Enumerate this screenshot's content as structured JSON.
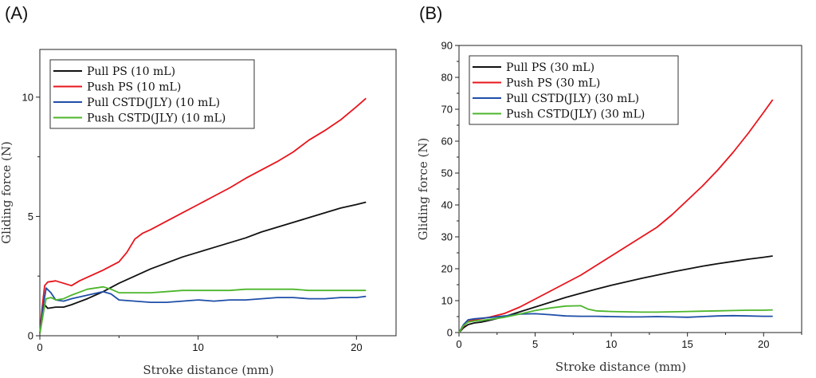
{
  "panels": [
    "(A)",
    "(B)"
  ],
  "chart_data": [
    {
      "type": "line",
      "panel": "(A)",
      "title": "",
      "xlabel": "Stroke distance (mm)",
      "ylabel": "Gliding force (N)",
      "xlim": [
        0,
        22.5
      ],
      "ylim": [
        0,
        12
      ],
      "xticks": [
        0,
        10,
        20
      ],
      "yticks": [
        0,
        5,
        10
      ],
      "legend_position": "top-left",
      "series": [
        {
          "name": "Pull PS (10 mL)",
          "color": "#111111",
          "x": [
            0,
            0.15,
            0.3,
            0.5,
            1,
            1.5,
            2,
            3,
            4,
            5,
            6,
            7,
            8,
            9,
            10,
            11,
            12,
            13,
            14,
            15,
            16,
            17,
            18,
            19,
            20,
            20.6
          ],
          "y": [
            0.1,
            0.7,
            1.3,
            1.15,
            1.2,
            1.2,
            1.3,
            1.55,
            1.85,
            2.2,
            2.5,
            2.8,
            3.05,
            3.3,
            3.5,
            3.7,
            3.9,
            4.1,
            4.35,
            4.55,
            4.75,
            4.95,
            5.15,
            5.35,
            5.5,
            5.6
          ]
        },
        {
          "name": "Push PS (10 mL)",
          "color": "#e8141b",
          "x": [
            0,
            0.15,
            0.3,
            0.5,
            1,
            1.5,
            2,
            2.5,
            3,
            4,
            5,
            5.5,
            6,
            6.5,
            7,
            8,
            9,
            10,
            11,
            12,
            13,
            14,
            15,
            16,
            17,
            18,
            19,
            20,
            20.6
          ],
          "y": [
            0.1,
            1.2,
            2.1,
            2.25,
            2.3,
            2.2,
            2.1,
            2.3,
            2.45,
            2.75,
            3.1,
            3.5,
            4.05,
            4.3,
            4.45,
            4.8,
            5.15,
            5.5,
            5.85,
            6.2,
            6.6,
            6.95,
            7.3,
            7.7,
            8.2,
            8.6,
            9.05,
            9.6,
            9.95
          ]
        },
        {
          "name": "Pull CSTD(JLY) (10 mL)",
          "color": "#1f4fa8",
          "x": [
            0,
            0.2,
            0.4,
            0.7,
            1,
            1.5,
            2,
            3,
            4,
            4.5,
            5,
            6,
            7,
            8,
            9,
            10,
            11,
            12,
            13,
            14,
            15,
            16,
            17,
            18,
            19,
            20,
            20.6
          ],
          "y": [
            0.1,
            1.2,
            2.0,
            1.8,
            1.5,
            1.45,
            1.55,
            1.7,
            1.85,
            1.75,
            1.5,
            1.45,
            1.4,
            1.4,
            1.45,
            1.5,
            1.45,
            1.5,
            1.5,
            1.55,
            1.6,
            1.6,
            1.55,
            1.55,
            1.6,
            1.6,
            1.65
          ]
        },
        {
          "name": "Push CSTD(JLY) (10 mL)",
          "color": "#4cb62c",
          "x": [
            0,
            0.2,
            0.4,
            0.7,
            1,
            1.5,
            2,
            3,
            3.5,
            4,
            4.5,
            5,
            6,
            7,
            8,
            9,
            10,
            11,
            12,
            13,
            14,
            15,
            16,
            17,
            18,
            19,
            20,
            20.6
          ],
          "y": [
            0.1,
            0.9,
            1.55,
            1.6,
            1.5,
            1.55,
            1.7,
            1.95,
            2.0,
            2.05,
            1.95,
            1.8,
            1.8,
            1.8,
            1.85,
            1.9,
            1.9,
            1.9,
            1.9,
            1.95,
            1.95,
            1.95,
            1.95,
            1.9,
            1.9,
            1.9,
            1.9,
            1.9
          ]
        }
      ]
    },
    {
      "type": "line",
      "panel": "(B)",
      "title": "",
      "xlabel": "Stroke distance (mm)",
      "ylabel": "Gliding force (N)",
      "xlim": [
        0,
        22.5
      ],
      "ylim": [
        0,
        90
      ],
      "xticks": [
        0,
        5,
        10,
        15,
        20
      ],
      "yticks": [
        0,
        10,
        20,
        30,
        40,
        50,
        60,
        70,
        80,
        90
      ],
      "legend_position": "top-left",
      "series": [
        {
          "name": "Pull PS (30 mL)",
          "color": "#111111",
          "x": [
            0,
            0.3,
            0.6,
            1,
            1.5,
            2,
            3,
            4,
            5,
            6,
            7,
            8,
            9,
            10,
            11,
            12,
            13,
            14,
            15,
            16,
            17,
            18,
            19,
            20,
            20.6
          ],
          "y": [
            0,
            1.5,
            2.5,
            3,
            3.3,
            3.8,
            5,
            6.5,
            8,
            9.5,
            11,
            12.3,
            13.6,
            14.8,
            15.9,
            17,
            18,
            19,
            19.9,
            20.8,
            21.6,
            22.3,
            23,
            23.6,
            24
          ]
        },
        {
          "name": "Push PS (30 mL)",
          "color": "#e8141b",
          "x": [
            0,
            0.3,
            0.6,
            1,
            2,
            3,
            4,
            5,
            6,
            7,
            8,
            9,
            10,
            11,
            12,
            13,
            14,
            15,
            16,
            17,
            18,
            19,
            20,
            20.6
          ],
          "y": [
            0,
            2,
            3.5,
            4,
            4.8,
            6,
            8,
            10.5,
            13,
            15.5,
            18,
            21,
            24,
            27,
            30,
            33,
            37,
            41.5,
            46,
            51,
            56.5,
            62.5,
            69,
            73
          ]
        },
        {
          "name": "Pull CSTD(JLY) (30 mL)",
          "color": "#1f4fa8",
          "x": [
            0,
            0.3,
            0.6,
            1,
            2,
            3,
            4,
            5,
            6,
            7,
            8,
            9,
            10,
            11,
            12,
            13,
            14,
            15,
            16,
            17,
            18,
            19,
            20,
            20.6
          ],
          "y": [
            0,
            2.5,
            4,
            4.3,
            4.7,
            5.2,
            5.8,
            5.9,
            5.6,
            5.2,
            5.1,
            5.1,
            5,
            4.9,
            4.9,
            5.0,
            4.9,
            4.8,
            5.0,
            5.2,
            5.3,
            5.2,
            5.1,
            5.1
          ]
        },
        {
          "name": "Push CSTD(JLY) (30 mL)",
          "color": "#4cb62c",
          "x": [
            0,
            0.3,
            0.6,
            1,
            2,
            3,
            4,
            5,
            6,
            7,
            8,
            8.5,
            9,
            10,
            11,
            12,
            13,
            14,
            15,
            16,
            17,
            18,
            19,
            20,
            20.6
          ],
          "y": [
            0,
            2.2,
            3.3,
            3.6,
            4.1,
            4.8,
            5.8,
            6.9,
            7.7,
            8.3,
            8.4,
            7.3,
            6.8,
            6.6,
            6.5,
            6.4,
            6.4,
            6.5,
            6.6,
            6.7,
            6.8,
            6.9,
            7.0,
            7.0,
            7.1
          ]
        }
      ]
    }
  ]
}
